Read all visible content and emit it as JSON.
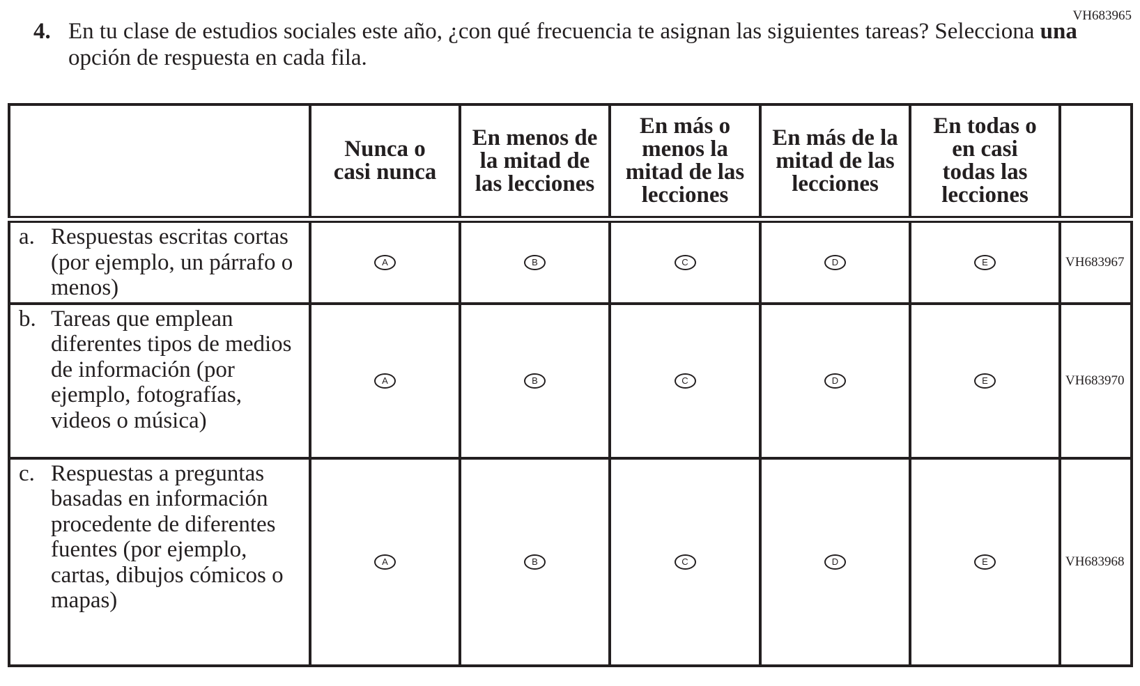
{
  "item_code": "VH683965",
  "question": {
    "number": "4.",
    "text_before": "En tu clase de estudios sociales este año, ¿con qué frecuencia te asignan las siguientes tareas? Selecciona ",
    "text_bold": "una",
    "text_after": " opción de respuesta en cada fila."
  },
  "columns": [
    "Nunca o casi nunca",
    "En menos de la mitad de las lecciones",
    "En más o menos la mitad de las lecciones",
    "En más de la mitad de las lecciones",
    "En todas o en casi todas las lecciones"
  ],
  "options": [
    "A",
    "B",
    "C",
    "D",
    "E"
  ],
  "rows": [
    {
      "letter": "a.",
      "text": "Respuestas escritas cortas (por ejemplo, un párrafo o menos)",
      "code": "VH683967"
    },
    {
      "letter": "b.",
      "text": "Tareas que emplean diferentes tipos de medios de información (por ejemplo, fotografías, videos o música)",
      "code": "VH683970"
    },
    {
      "letter": "c.",
      "text": "Respuestas a preguntas basadas en información procedente de diferentes fuentes (por ejemplo, cartas, dibujos cómicos o mapas)",
      "code": "VH683968"
    }
  ]
}
